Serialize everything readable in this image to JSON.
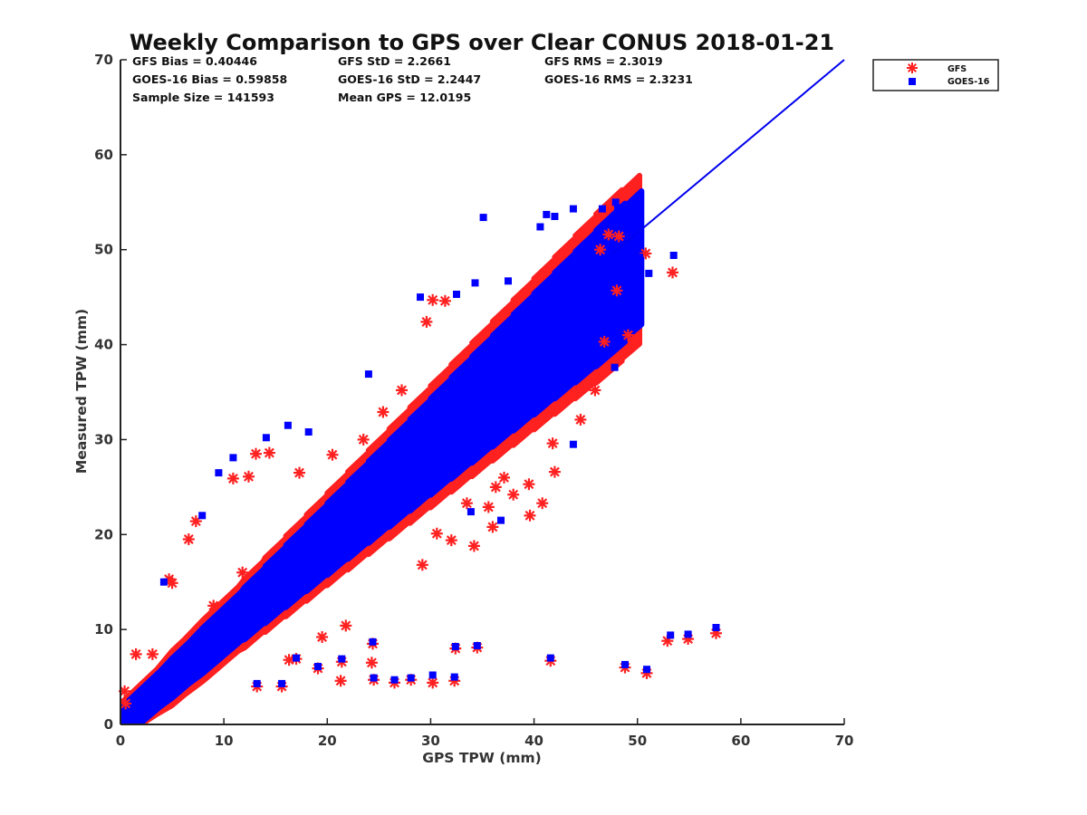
{
  "chart_data": {
    "type": "scatter",
    "title": "Weekly Comparison to GPS over Clear CONUS 2018-01-21",
    "xlabel": "GPS TPW (mm)",
    "ylabel": "Measured TPW (mm)",
    "xlim": [
      0,
      70
    ],
    "ylim": [
      0,
      70
    ],
    "xticks": [
      "0",
      "10",
      "20",
      "30",
      "40",
      "50",
      "60",
      "70"
    ],
    "yticks": [
      "0",
      "10",
      "20",
      "30",
      "40",
      "50",
      "60",
      "70"
    ],
    "stats": [
      "GFS Bias = 0.40446",
      "GFS StD = 2.2661",
      "GFS RMS = 2.3019",
      "GOES-16 Bias = 0.59858",
      "GOES-16 StD = 2.2447",
      "GOES-16 RMS = 2.3231",
      "Sample Size = 141593",
      "Mean GPS = 12.0195"
    ],
    "legend_position": "top-right-outside",
    "reference_line": {
      "name": "1:1 line",
      "from": [
        47.5,
        49.5
      ],
      "to": [
        70,
        70
      ],
      "color": "#0000ee"
    },
    "series": [
      {
        "name": "GFS",
        "marker": "asterisk",
        "color": "#ff2020",
        "points": [
          [
            53.4,
            47.6
          ],
          [
            50.8,
            49.6
          ],
          [
            49.1,
            41.0
          ],
          [
            48.0,
            45.7
          ],
          [
            46.8,
            40.3
          ],
          [
            45.9,
            35.2
          ],
          [
            44.5,
            32.1
          ],
          [
            42.0,
            26.6
          ],
          [
            41.8,
            29.6
          ],
          [
            40.8,
            23.3
          ],
          [
            39.6,
            22.0
          ],
          [
            38.0,
            24.2
          ],
          [
            36.0,
            20.8
          ],
          [
            35.6,
            22.9
          ],
          [
            34.2,
            18.8
          ],
          [
            32.0,
            19.4
          ],
          [
            30.6,
            20.1
          ],
          [
            29.2,
            16.8
          ],
          [
            57.6,
            9.6
          ],
          [
            54.9,
            9.0
          ],
          [
            52.9,
            8.8
          ],
          [
            50.9,
            5.4
          ],
          [
            48.8,
            6.0
          ],
          [
            41.6,
            6.7
          ],
          [
            34.5,
            8.1
          ],
          [
            32.4,
            8.0
          ],
          [
            32.3,
            4.6
          ],
          [
            30.2,
            4.4
          ],
          [
            28.1,
            4.7
          ],
          [
            26.5,
            4.4
          ],
          [
            24.5,
            4.7
          ],
          [
            24.4,
            8.5
          ],
          [
            24.3,
            6.5
          ],
          [
            21.4,
            6.6
          ],
          [
            21.3,
            4.6
          ],
          [
            19.1,
            5.9
          ],
          [
            17.0,
            6.9
          ],
          [
            16.3,
            6.8
          ],
          [
            15.6,
            4.0
          ],
          [
            13.2,
            4.0
          ],
          [
            21.8,
            10.4
          ],
          [
            19.5,
            9.2
          ],
          [
            10.9,
            25.9
          ],
          [
            12.4,
            26.1
          ],
          [
            14.4,
            28.6
          ],
          [
            13.1,
            28.5
          ],
          [
            17.3,
            26.5
          ],
          [
            7.3,
            21.4
          ],
          [
            5.0,
            14.9
          ],
          [
            4.7,
            15.3
          ],
          [
            6.6,
            19.5
          ],
          [
            30.2,
            44.7
          ],
          [
            31.4,
            44.6
          ],
          [
            29.6,
            42.4
          ],
          [
            27.2,
            35.2
          ],
          [
            25.4,
            32.9
          ],
          [
            23.5,
            30.0
          ],
          [
            20.5,
            28.4
          ],
          [
            47.2,
            51.6
          ],
          [
            48.2,
            51.4
          ],
          [
            46.4,
            50.0
          ],
          [
            39.5,
            25.3
          ],
          [
            37.1,
            26.0
          ],
          [
            36.3,
            25.0
          ],
          [
            33.5,
            23.3
          ],
          [
            11.8,
            16.0
          ],
          [
            9.0,
            12.5
          ],
          [
            3.1,
            7.4
          ],
          [
            1.5,
            7.4
          ],
          [
            0.4,
            3.5
          ],
          [
            0.5,
            2.2
          ]
        ]
      },
      {
        "name": "GOES-16",
        "marker": "square",
        "color": "#0000ff",
        "points": [
          [
            57.6,
            10.2
          ],
          [
            54.9,
            9.5
          ],
          [
            53.2,
            9.4
          ],
          [
            50.9,
            5.8
          ],
          [
            48.8,
            6.3
          ],
          [
            41.6,
            7.0
          ],
          [
            34.5,
            8.3
          ],
          [
            32.4,
            8.2
          ],
          [
            32.3,
            5.0
          ],
          [
            30.2,
            5.2
          ],
          [
            28.1,
            4.9
          ],
          [
            26.5,
            4.7
          ],
          [
            24.5,
            4.9
          ],
          [
            24.4,
            8.7
          ],
          [
            21.4,
            6.9
          ],
          [
            19.1,
            6.1
          ],
          [
            17.0,
            7.0
          ],
          [
            15.6,
            4.3
          ],
          [
            13.2,
            4.3
          ],
          [
            35.1,
            53.4
          ],
          [
            41.2,
            53.7
          ],
          [
            47.9,
            55.0
          ],
          [
            48.1,
            54.4
          ],
          [
            46.6,
            54.3
          ],
          [
            43.8,
            54.3
          ],
          [
            42.0,
            53.5
          ],
          [
            40.6,
            52.4
          ],
          [
            53.5,
            49.4
          ],
          [
            51.1,
            47.5
          ],
          [
            50.2,
            49.2
          ],
          [
            47.8,
            37.6
          ],
          [
            43.8,
            29.5
          ],
          [
            34.3,
            46.5
          ],
          [
            32.5,
            45.3
          ],
          [
            14.1,
            30.2
          ],
          [
            10.9,
            28.1
          ],
          [
            18.2,
            30.8
          ],
          [
            24.0,
            36.9
          ],
          [
            7.9,
            22.0
          ],
          [
            4.2,
            15.0
          ],
          [
            33.9,
            22.4
          ],
          [
            36.8,
            21.5
          ],
          [
            9.5,
            26.5
          ],
          [
            44.9,
            48.1
          ],
          [
            37.5,
            46.7
          ],
          [
            29.0,
            45.0
          ],
          [
            33.0,
            28.0
          ],
          [
            16.2,
            31.5
          ]
        ]
      }
    ],
    "cloud_bands": [
      {
        "color": "#ff2020",
        "halfwidth": 2.2,
        "segments": [
          [
            0.2,
            1.3,
            1.0
          ],
          [
            2,
            3.5,
            1.0
          ],
          [
            5,
            6.2,
            1.2
          ],
          [
            8,
            9.2,
            1.3
          ],
          [
            10,
            11.4,
            1.3
          ],
          [
            12,
            13.8,
            1.4
          ],
          [
            14,
            16.5,
            1.5
          ],
          [
            16,
            18.7,
            1.6
          ],
          [
            18,
            20.8,
            1.7
          ],
          [
            20,
            22.8,
            1.8
          ],
          [
            22,
            24.7,
            1.9
          ],
          [
            24,
            26.8,
            2.0
          ],
          [
            26,
            28.8,
            2.1
          ],
          [
            28,
            30.7,
            2.2
          ],
          [
            30,
            32.9,
            2.3
          ],
          [
            32,
            34.8,
            2.4
          ],
          [
            34,
            36.7,
            2.5
          ],
          [
            36,
            38.8,
            2.6
          ],
          [
            38,
            40.8,
            2.7
          ],
          [
            40,
            42.7,
            2.8
          ],
          [
            42,
            44.8,
            2.9
          ],
          [
            44,
            46.6,
            3.0
          ],
          [
            46,
            48.5,
            3.1
          ],
          [
            48,
            50.2,
            3.0
          ]
        ]
      },
      {
        "color": "#0000ff",
        "halfwidth": 1.7,
        "segments": [
          [
            0.2,
            1.6,
            1.0
          ],
          [
            2,
            3.8,
            1.0
          ],
          [
            5,
            6.6,
            1.1
          ],
          [
            8,
            9.6,
            1.2
          ],
          [
            10,
            11.7,
            1.2
          ],
          [
            12,
            14.1,
            1.3
          ],
          [
            14,
            16.8,
            1.4
          ],
          [
            16,
            19.0,
            1.5
          ],
          [
            18,
            21.1,
            1.6
          ],
          [
            20,
            23.1,
            1.7
          ],
          [
            22,
            25.0,
            1.8
          ],
          [
            24,
            27.1,
            1.9
          ],
          [
            26,
            29.1,
            2.0
          ],
          [
            28,
            31.0,
            2.1
          ],
          [
            30,
            33.2,
            2.2
          ],
          [
            32,
            35.1,
            2.3
          ],
          [
            34,
            37.0,
            2.4
          ],
          [
            36,
            39.1,
            2.5
          ],
          [
            38,
            41.1,
            2.6
          ],
          [
            40,
            43.0,
            2.7
          ],
          [
            42,
            45.1,
            2.8
          ],
          [
            44,
            46.9,
            2.9
          ],
          [
            46,
            48.8,
            3.0
          ],
          [
            48,
            50.4,
            2.8
          ]
        ]
      }
    ]
  }
}
